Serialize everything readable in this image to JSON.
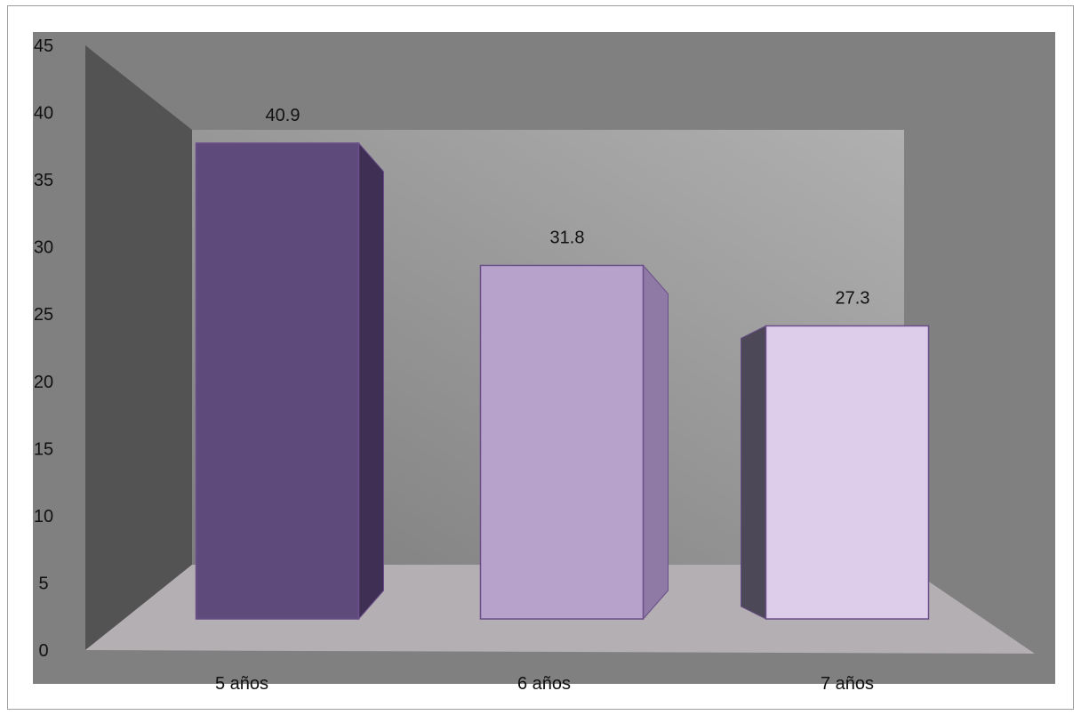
{
  "chart_data": {
    "type": "bar",
    "style": "3d-column",
    "categories": [
      "5 años",
      "6 años",
      "7 años"
    ],
    "values": [
      40.9,
      31.8,
      27.3
    ],
    "data_labels": [
      "40.9",
      "31.8",
      "27.3"
    ],
    "ylim": [
      0,
      45
    ],
    "yticks": [
      0,
      5,
      10,
      15,
      20,
      25,
      30,
      35,
      40,
      45
    ],
    "grid": false,
    "legend": "none",
    "bar_colors": [
      "#5f4a7c",
      "#b7a2cc",
      "#decdea"
    ],
    "bar_side_colors": [
      "#3f2f54",
      "#8f7aa6",
      "#4d4858"
    ],
    "bar_outline": "#6b4f8a",
    "plot_background": "#808080",
    "wall_side_color": "#535353",
    "back_wall_gradient": [
      "#7e7e7e",
      "#b0b0b0"
    ],
    "floor_color": "#b4afb3"
  }
}
